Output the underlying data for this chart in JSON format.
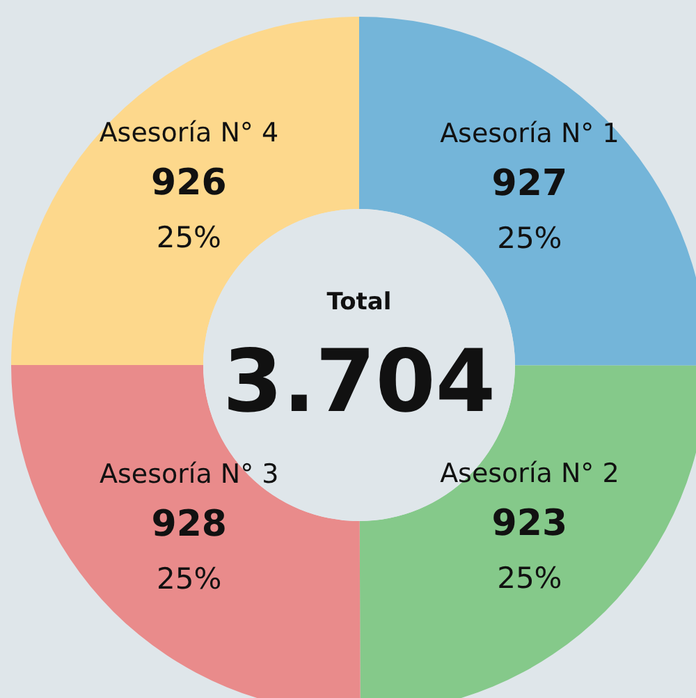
{
  "chart_data": {
    "type": "donut",
    "title": "Total",
    "annotations": [
      "3.704",
      {
        "text": "25%",
        "x": "Asesoría N° 1"
      },
      {
        "text": "25%",
        "x": "Asesoría N° 2"
      },
      {
        "text": "25%",
        "x": "Asesoría N° 3"
      },
      {
        "text": "25%",
        "x": "Asesoría N° 4"
      }
    ],
    "categories": [
      "Asesoría N° 1",
      "Asesoría N° 2",
      "Asesoría N° 3",
      "Asesoría N° 4"
    ],
    "values": [
      927,
      923,
      928,
      926
    ],
    "colors": [
      "#74b5d9",
      "#85c98a",
      "#e98b8b",
      "#fdd88c"
    ],
    "value_labels": [
      "927",
      "923",
      "928",
      "926"
    ]
  }
}
